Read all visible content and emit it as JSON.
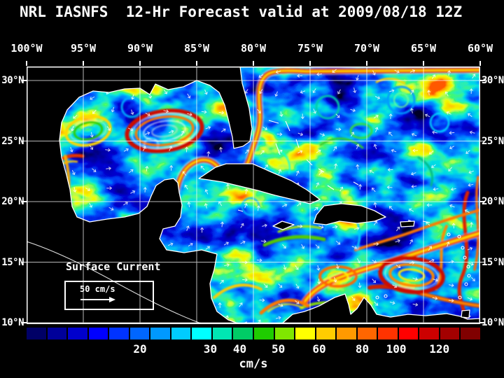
{
  "title": "NRL IASNFS  12-Hr Forecast valid at 2009/08/18 12Z",
  "map": {
    "lon_labels": [
      "100°W",
      "95°W",
      "90°W",
      "85°W",
      "80°W",
      "75°W",
      "70°W",
      "65°W",
      "60°W"
    ],
    "lat_labels": [
      "30°N",
      "25°N",
      "20°N",
      "15°N",
      "10°N"
    ],
    "annotation": "Surface Current",
    "scale_label": "50 cm/s"
  },
  "colorbar": {
    "unit": "cm/s",
    "tick_labels": [
      "20",
      "30",
      "40",
      "50",
      "60",
      "80",
      "100",
      "120"
    ],
    "segment_colors": [
      "#000066",
      "#000099",
      "#0000cc",
      "#0000ff",
      "#0033ff",
      "#0066ff",
      "#0099ff",
      "#00ccff",
      "#00ffff",
      "#00e6b3",
      "#00cc66",
      "#1fcc00",
      "#80e600",
      "#ffff00",
      "#ffcc00",
      "#ff9900",
      "#ff6600",
      "#ff3300",
      "#ff0000",
      "#cc0000",
      "#a30000",
      "#800000"
    ],
    "accent_grid_color": "#ffffff"
  }
}
